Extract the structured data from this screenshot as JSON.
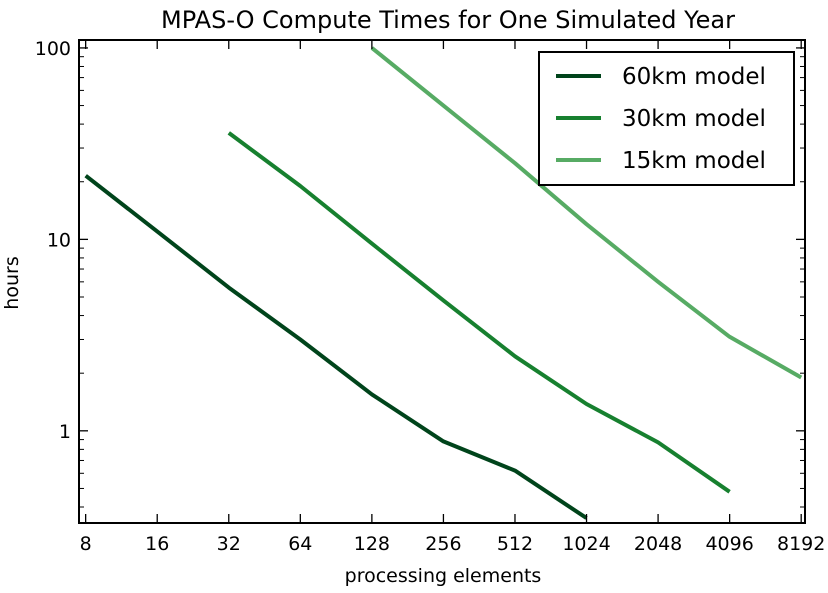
{
  "chart_data": {
    "type": "line",
    "title": "MPAS-O Compute Times for One Simulated Year",
    "xlabel": "processing elements",
    "ylabel": "hours",
    "xscale": "log2",
    "yscale": "log10",
    "xlim": [
      7.5,
      8500
    ],
    "ylim": [
      0.33,
      110
    ],
    "xticks": [
      8,
      16,
      32,
      64,
      128,
      256,
      512,
      1024,
      2048,
      4096,
      8192
    ],
    "xtick_labels": [
      "8",
      "16",
      "32",
      "64",
      "128",
      "256",
      "512",
      "1024",
      "2048",
      "4096",
      "8192"
    ],
    "yticks": [
      1,
      10,
      100
    ],
    "ytick_labels": [
      "1",
      "10",
      "100"
    ],
    "grid": false,
    "legend_position": "top-right",
    "series": [
      {
        "name": "60km model",
        "color": "#00441b",
        "x": [
          8,
          16,
          32,
          64,
          128,
          256,
          512,
          1024
        ],
        "y": [
          21.5,
          11.0,
          5.6,
          3.0,
          1.55,
          0.88,
          0.62,
          0.35
        ]
      },
      {
        "name": "30km model",
        "color": "#17802f",
        "x": [
          32,
          64,
          128,
          256,
          512,
          1024,
          2048,
          4096
        ],
        "y": [
          36.0,
          19.0,
          9.5,
          4.8,
          2.45,
          1.38,
          0.87,
          0.48
        ]
      },
      {
        "name": "15km model",
        "color": "#57ab64",
        "x": [
          128,
          256,
          512,
          1024,
          2048,
          4096,
          8192
        ],
        "y": [
          100.0,
          50.0,
          25.0,
          12.0,
          6.0,
          3.1,
          1.9
        ]
      }
    ]
  }
}
